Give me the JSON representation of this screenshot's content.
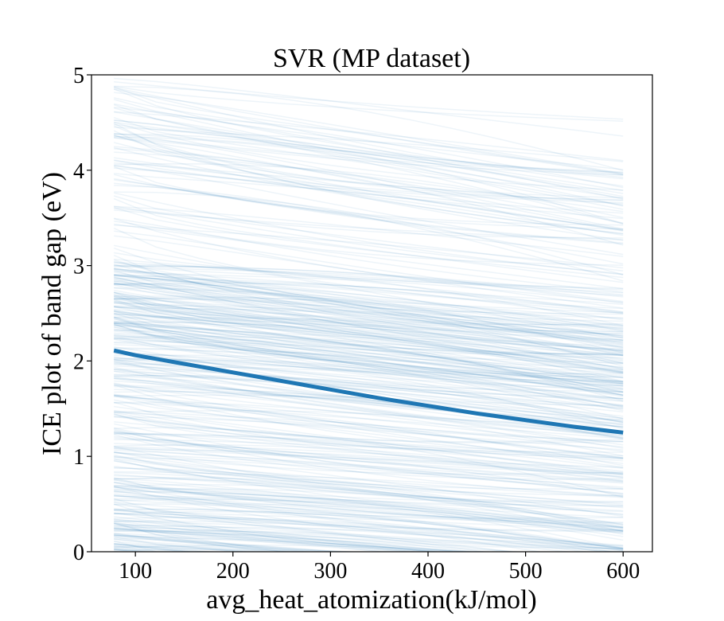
{
  "chart_data": {
    "type": "line",
    "title": "SVR (MP dataset)",
    "xlabel": "avg_heat_atomization(kJ/mol)",
    "ylabel": "ICE plot of band gap (eV)",
    "xlim": [
      55,
      630
    ],
    "ylim": [
      0,
      5
    ],
    "xticks": [
      100,
      200,
      300,
      400,
      500,
      600
    ],
    "yticks": [
      0,
      1,
      2,
      3,
      4,
      5
    ],
    "grid": false,
    "ice_color": "#1f77b4",
    "ice_x_range": [
      78,
      600
    ],
    "ice_curve_count": 420,
    "average_series": {
      "x": [
        78,
        100,
        150,
        200,
        250,
        300,
        350,
        400,
        450,
        500,
        550,
        600
      ],
      "y": [
        2.11,
        2.06,
        1.97,
        1.88,
        1.79,
        1.7,
        1.61,
        1.53,
        1.45,
        1.38,
        1.31,
        1.25
      ]
    }
  }
}
